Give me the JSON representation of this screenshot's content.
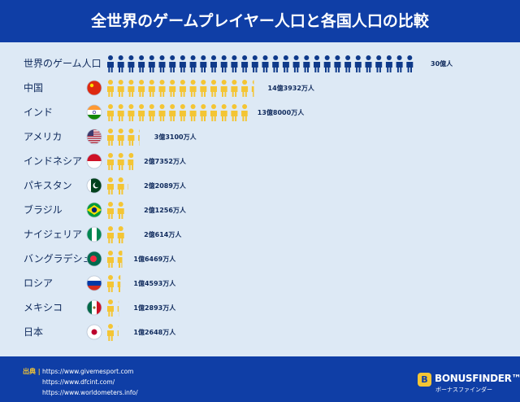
{
  "title": "全世界のゲームプレイヤー人口と各国人口の比較",
  "chart_data": {
    "type": "pictograph",
    "unit_value": 1,
    "unit_label": "億人",
    "rows": [
      {
        "label": "世界のゲーム人口",
        "value": 30,
        "value_label": "30億人",
        "flag": "world",
        "icon_color": "#0f3a8a"
      },
      {
        "label": "中国",
        "value": 14.3932,
        "value_label": "14億3932万人",
        "flag": "china",
        "icon_color": "#f4c534"
      },
      {
        "label": "インド",
        "value": 13.8,
        "value_label": "13億8000万人",
        "flag": "india",
        "icon_color": "#f4c534"
      },
      {
        "label": "アメリカ",
        "value": 3.31,
        "value_label": "3億3100万人",
        "flag": "usa",
        "icon_color": "#f4c534"
      },
      {
        "label": "インドネシア",
        "value": 2.7352,
        "value_label": "2億7352万人",
        "flag": "indonesia",
        "icon_color": "#f4c534"
      },
      {
        "label": "パキスタン",
        "value": 2.2089,
        "value_label": "2億2089万人",
        "flag": "pakistan",
        "icon_color": "#f4c534"
      },
      {
        "label": "ブラジル",
        "value": 2.1256,
        "value_label": "2億1256万人",
        "flag": "brazil",
        "icon_color": "#f4c534"
      },
      {
        "label": "ナイジェリア",
        "value": 2.0614,
        "value_label": "2億614万人",
        "flag": "nigeria",
        "icon_color": "#f4c534"
      },
      {
        "label": "バングラデシュ",
        "value": 1.6469,
        "value_label": "1億6469万人",
        "flag": "bangladesh",
        "icon_color": "#f4c534"
      },
      {
        "label": "ロシア",
        "value": 1.4593,
        "value_label": "1億4593万人",
        "flag": "russia",
        "icon_color": "#f4c534"
      },
      {
        "label": "メキシコ",
        "value": 1.2893,
        "value_label": "1億2893万人",
        "flag": "mexico",
        "icon_color": "#f4c534"
      },
      {
        "label": "日本",
        "value": 1.2648,
        "value_label": "1億2648万人",
        "flag": "japan",
        "icon_color": "#f4c534"
      }
    ]
  },
  "footer": {
    "source_label": "出典 |",
    "sources": [
      "https://www.givemesport.com",
      "https://www.dfcint.com/",
      "https://www.worldometers.info/"
    ]
  },
  "brand": {
    "name": "BONUSFINDER™",
    "tagline": "ボーナスファインダー",
    "mark": "B"
  },
  "colors": {
    "header_bg": "#0f3ea6",
    "page_bg": "#dde9f5",
    "label_text": "#0f2a5c",
    "world_icon": "#0f3a8a",
    "country_icon": "#f4c534"
  }
}
